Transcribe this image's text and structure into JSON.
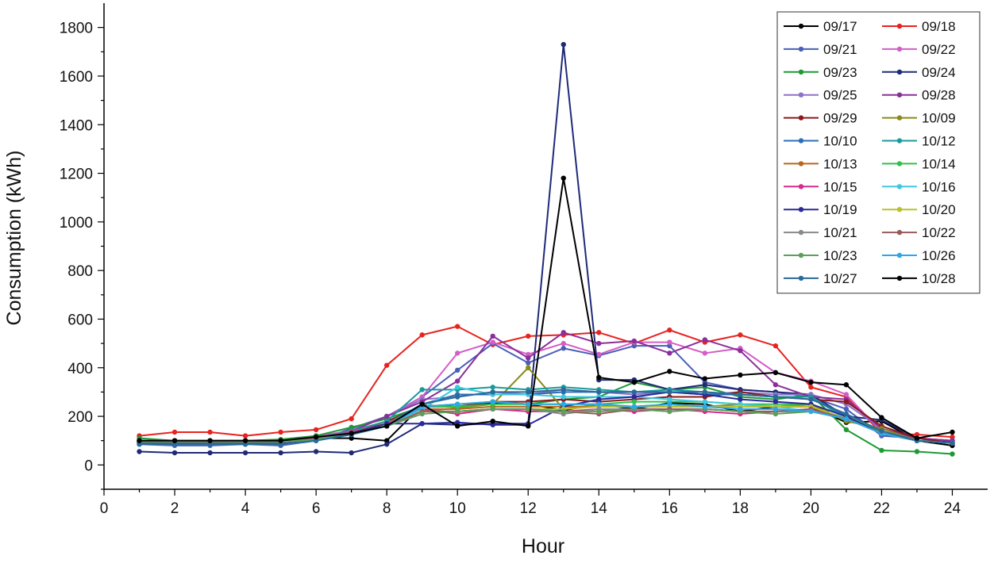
{
  "chart_data": {
    "type": "line",
    "title": "",
    "xlabel": "Hour",
    "ylabel": "Consumption (kWh)",
    "xlim": [
      0,
      25
    ],
    "ylim": [
      -100,
      1900
    ],
    "x_ticks": [
      0,
      2,
      4,
      6,
      8,
      10,
      12,
      14,
      16,
      18,
      20,
      22,
      24
    ],
    "y_ticks": [
      0,
      200,
      400,
      600,
      800,
      1000,
      1200,
      1400,
      1600,
      1800
    ],
    "grid": false,
    "legend_position": "top-right",
    "x": [
      1,
      2,
      3,
      4,
      5,
      6,
      7,
      8,
      9,
      10,
      11,
      12,
      13,
      14,
      15,
      16,
      17,
      18,
      19,
      20,
      21,
      22,
      23,
      24
    ],
    "series": [
      {
        "name": "09/17",
        "color": "#000000",
        "values": [
          90,
          85,
          95,
          90,
          90,
          110,
          110,
          100,
          245,
          240,
          255,
          250,
          225,
          250,
          230,
          255,
          250,
          220,
          240,
          240,
          175,
          180,
          100,
          80
        ]
      },
      {
        "name": "09/18",
        "color": "#e8231f",
        "values": [
          120,
          135,
          135,
          120,
          135,
          145,
          190,
          410,
          535,
          570,
          495,
          530,
          535,
          545,
          500,
          555,
          505,
          535,
          490,
          320,
          280,
          130,
          125,
          115
        ]
      },
      {
        "name": "09/21",
        "color": "#4a5fb8",
        "values": [
          85,
          80,
          80,
          85,
          80,
          100,
          150,
          200,
          280,
          390,
          500,
          420,
          480,
          450,
          490,
          490,
          340,
          310,
          300,
          280,
          230,
          120,
          110,
          100
        ]
      },
      {
        "name": "09/22",
        "color": "#d35fc6",
        "values": [
          100,
          100,
          100,
          100,
          100,
          120,
          140,
          200,
          280,
          460,
          505,
          455,
          500,
          455,
          505,
          505,
          460,
          480,
          380,
          345,
          290,
          135,
          110,
          100
        ]
      },
      {
        "name": "09/23",
        "color": "#1e9a34",
        "values": [
          110,
          100,
          100,
          100,
          105,
          120,
          155,
          190,
          240,
          250,
          260,
          250,
          270,
          280,
          340,
          310,
          320,
          280,
          270,
          290,
          145,
          60,
          55,
          45
        ]
      },
      {
        "name": "09/24",
        "color": "#1f2a78",
        "values": [
          55,
          50,
          50,
          50,
          50,
          55,
          50,
          85,
          170,
          165,
          170,
          170,
          1730,
          350,
          350,
          310,
          330,
          310,
          300,
          290,
          200,
          185,
          110,
          95
        ]
      },
      {
        "name": "09/25",
        "color": "#9070c8",
        "values": [
          90,
          90,
          90,
          90,
          90,
          110,
          140,
          200,
          270,
          280,
          300,
          290,
          310,
          300,
          290,
          300,
          290,
          300,
          290,
          290,
          250,
          150,
          110,
          100
        ]
      },
      {
        "name": "09/28",
        "color": "#8a2f9a",
        "values": [
          95,
          95,
          95,
          95,
          95,
          110,
          140,
          200,
          260,
          345,
          530,
          440,
          545,
          500,
          510,
          460,
          515,
          470,
          330,
          280,
          270,
          150,
          110,
          100
        ]
      },
      {
        "name": "09/29",
        "color": "#8b1a1a",
        "values": [
          95,
          95,
          95,
          95,
          95,
          110,
          135,
          180,
          240,
          240,
          260,
          260,
          270,
          260,
          270,
          280,
          280,
          300,
          280,
          270,
          260,
          160,
          110,
          90
        ]
      },
      {
        "name": "10/09",
        "color": "#8a8a1a",
        "values": [
          95,
          95,
          95,
          95,
          95,
          110,
          135,
          170,
          220,
          235,
          250,
          400,
          230,
          250,
          240,
          250,
          240,
          250,
          240,
          250,
          180,
          150,
          100,
          90
        ]
      },
      {
        "name": "10/10",
        "color": "#2b6fb5",
        "values": [
          100,
          100,
          100,
          100,
          100,
          110,
          130,
          170,
          250,
          290,
          290,
          290,
          300,
          300,
          300,
          300,
          290,
          290,
          280,
          280,
          200,
          140,
          100,
          90
        ]
      },
      {
        "name": "10/12",
        "color": "#1a9a9a",
        "values": [
          100,
          100,
          100,
          100,
          100,
          110,
          140,
          180,
          310,
          310,
          320,
          310,
          320,
          310,
          300,
          310,
          300,
          290,
          280,
          280,
          190,
          130,
          100,
          90
        ]
      },
      {
        "name": "10/13",
        "color": "#b8661a",
        "values": [
          100,
          100,
          100,
          100,
          100,
          110,
          135,
          170,
          230,
          230,
          240,
          240,
          240,
          240,
          240,
          240,
          240,
          240,
          240,
          240,
          190,
          140,
          100,
          90
        ]
      },
      {
        "name": "10/14",
        "color": "#2ec24a",
        "values": [
          100,
          100,
          100,
          100,
          100,
          110,
          135,
          170,
          240,
          240,
          250,
          250,
          250,
          250,
          260,
          260,
          260,
          250,
          250,
          250,
          200,
          140,
          100,
          90
        ]
      },
      {
        "name": "10/15",
        "color": "#d62a8a",
        "values": [
          100,
          100,
          100,
          100,
          100,
          110,
          135,
          170,
          230,
          210,
          230,
          220,
          220,
          230,
          220,
          230,
          220,
          210,
          220,
          230,
          190,
          130,
          100,
          90
        ]
      },
      {
        "name": "10/16",
        "color": "#3ec8e0",
        "values": [
          95,
          95,
          95,
          95,
          95,
          105,
          130,
          160,
          230,
          320,
          290,
          290,
          280,
          280,
          280,
          270,
          260,
          250,
          240,
          220,
          200,
          130,
          100,
          90
        ]
      },
      {
        "name": "10/19",
        "color": "#2a2a9a",
        "values": [
          90,
          90,
          90,
          90,
          90,
          105,
          130,
          170,
          170,
          175,
          165,
          165,
          240,
          270,
          280,
          300,
          290,
          270,
          260,
          250,
          200,
          130,
          100,
          90
        ]
      },
      {
        "name": "10/20",
        "color": "#b8c22a",
        "values": [
          95,
          95,
          95,
          95,
          95,
          105,
          130,
          160,
          220,
          220,
          230,
          230,
          230,
          240,
          240,
          240,
          240,
          240,
          240,
          240,
          190,
          130,
          100,
          90
        ]
      },
      {
        "name": "10/21",
        "color": "#8a8a8a",
        "values": [
          95,
          95,
          95,
          95,
          95,
          105,
          130,
          160,
          220,
          220,
          230,
          230,
          210,
          230,
          230,
          220,
          230,
          220,
          220,
          220,
          190,
          130,
          100,
          90
        ]
      },
      {
        "name": "10/22",
        "color": "#9a5a5a",
        "values": [
          95,
          95,
          95,
          95,
          95,
          105,
          130,
          160,
          220,
          220,
          230,
          230,
          220,
          210,
          230,
          230,
          230,
          220,
          220,
          230,
          190,
          130,
          100,
          90
        ]
      },
      {
        "name": "10/23",
        "color": "#5aa05a",
        "values": [
          95,
          95,
          95,
          95,
          95,
          105,
          130,
          160,
          210,
          220,
          230,
          230,
          220,
          220,
          230,
          220,
          230,
          220,
          210,
          220,
          190,
          130,
          100,
          90
        ]
      },
      {
        "name": "10/26",
        "color": "#2aa8e8",
        "values": [
          85,
          85,
          85,
          85,
          85,
          100,
          125,
          160,
          240,
          250,
          260,
          250,
          250,
          250,
          240,
          250,
          240,
          230,
          230,
          220,
          190,
          130,
          100,
          90
        ]
      },
      {
        "name": "10/27",
        "color": "#2a6a9a",
        "values": [
          85,
          85,
          85,
          85,
          85,
          100,
          125,
          160,
          250,
          280,
          300,
          300,
          310,
          300,
          300,
          300,
          300,
          290,
          280,
          270,
          210,
          140,
          100,
          90
        ]
      },
      {
        "name": "10/28",
        "color": "#000000",
        "values": [
          100,
          100,
          100,
          100,
          100,
          115,
          130,
          160,
          250,
          160,
          180,
          160,
          1180,
          360,
          340,
          385,
          355,
          370,
          380,
          340,
          330,
          195,
          110,
          135
        ]
      }
    ]
  }
}
